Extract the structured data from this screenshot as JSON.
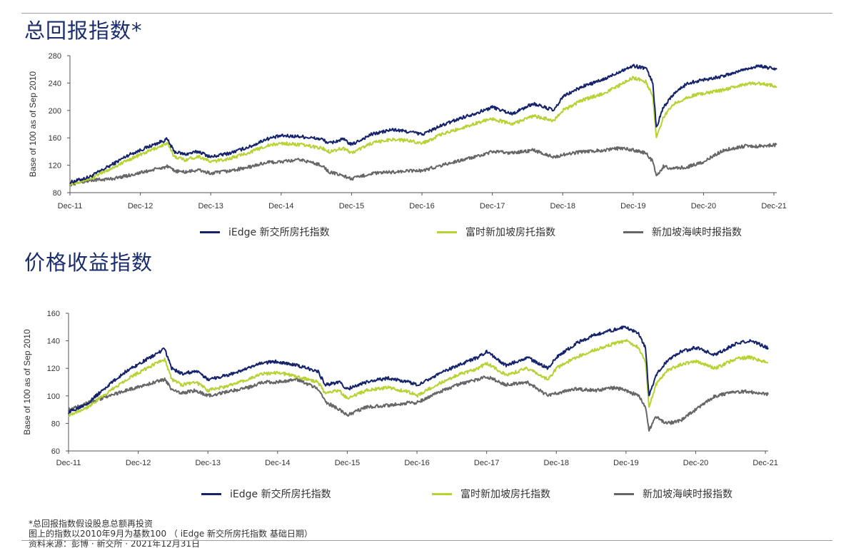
{
  "colors": {
    "navy": "#14236a",
    "lime": "#b6d233",
    "grey": "#666666"
  },
  "footnotes": [
    "*总回报指数假设股息总额再投资",
    "图上的指数以2010年9月为基数100 （ iEdge 新交所房托指数 基础日期）",
    "资料来源：彭博 · 新交所 · 2021年12月31日"
  ],
  "chart_data": [
    {
      "type": "line",
      "title": "总回报指数*",
      "ylabel": "Base of 100 as of Sep 2010",
      "ylim": [
        80,
        280
      ],
      "yticks": [
        80,
        120,
        160,
        200,
        240,
        280
      ],
      "xlim": [
        2011.92,
        2021.96
      ],
      "x_tick_labels": [
        "Dec-11",
        "Dec-12",
        "Dec-13",
        "Dec-14",
        "Dec-15",
        "Dec-16",
        "Dec-17",
        "Dec-18",
        "Dec-19",
        "Dec-20",
        "Dec-21"
      ],
      "x_ticks": [
        2011.92,
        2012.92,
        2013.92,
        2014.92,
        2015.92,
        2016.92,
        2017.92,
        2018.92,
        2019.92,
        2020.92,
        2021.92
      ],
      "legend": "bottom",
      "series": [
        {
          "name": "iEdge 新交所房托指数",
          "color": "#14236a",
          "x": [
            2011.92,
            2012.2,
            2012.5,
            2012.75,
            2013.3,
            2013.4,
            2013.55,
            2013.75,
            2013.92,
            2014.2,
            2014.5,
            2014.7,
            2014.92,
            2015.2,
            2015.5,
            2015.6,
            2015.8,
            2015.92,
            2016.2,
            2016.5,
            2016.8,
            2016.92,
            2017.2,
            2017.5,
            2017.8,
            2017.92,
            2018.2,
            2018.5,
            2018.8,
            2018.92,
            2019.2,
            2019.5,
            2019.75,
            2019.92,
            2020.1,
            2020.2,
            2020.25,
            2020.35,
            2020.5,
            2020.7,
            2020.92,
            2021.2,
            2021.5,
            2021.7,
            2021.96
          ],
          "y": [
            95,
            103,
            120,
            135,
            158,
            140,
            136,
            140,
            132,
            138,
            148,
            158,
            163,
            162,
            158,
            152,
            158,
            150,
            165,
            172,
            168,
            165,
            178,
            190,
            200,
            205,
            195,
            210,
            200,
            220,
            235,
            245,
            258,
            265,
            262,
            240,
            175,
            205,
            225,
            240,
            245,
            250,
            260,
            265,
            260
          ]
        },
        {
          "name": "富时新加坡房托指数",
          "color": "#b6d233",
          "x": [
            2011.92,
            2012.2,
            2012.5,
            2012.75,
            2013.3,
            2013.4,
            2013.55,
            2013.75,
            2013.92,
            2014.2,
            2014.5,
            2014.7,
            2014.92,
            2015.2,
            2015.5,
            2015.6,
            2015.8,
            2015.92,
            2016.2,
            2016.5,
            2016.8,
            2016.92,
            2017.2,
            2017.5,
            2017.8,
            2017.92,
            2018.2,
            2018.5,
            2018.8,
            2018.92,
            2019.2,
            2019.5,
            2019.75,
            2019.92,
            2020.1,
            2020.2,
            2020.25,
            2020.35,
            2020.5,
            2020.7,
            2020.92,
            2021.2,
            2021.5,
            2021.7,
            2021.96
          ],
          "y": [
            93,
            100,
            115,
            128,
            152,
            133,
            128,
            133,
            125,
            130,
            140,
            148,
            152,
            150,
            145,
            140,
            145,
            138,
            152,
            158,
            155,
            152,
            165,
            175,
            185,
            188,
            180,
            192,
            185,
            200,
            215,
            225,
            238,
            248,
            242,
            220,
            160,
            190,
            210,
            220,
            225,
            230,
            238,
            240,
            235
          ]
        },
        {
          "name": "新加坡海峡时报指数",
          "color": "#666666",
          "x": [
            2011.92,
            2012.2,
            2012.5,
            2012.75,
            2013.3,
            2013.4,
            2013.55,
            2013.75,
            2013.92,
            2014.2,
            2014.5,
            2014.7,
            2014.92,
            2015.2,
            2015.5,
            2015.6,
            2015.8,
            2015.92,
            2016.2,
            2016.5,
            2016.8,
            2016.92,
            2017.2,
            2017.5,
            2017.8,
            2017.92,
            2018.2,
            2018.5,
            2018.8,
            2018.92,
            2019.2,
            2019.5,
            2019.75,
            2019.92,
            2020.1,
            2020.2,
            2020.25,
            2020.35,
            2020.5,
            2020.7,
            2020.92,
            2021.2,
            2021.5,
            2021.7,
            2021.96
          ],
          "y": [
            92,
            98,
            100,
            105,
            118,
            112,
            110,
            113,
            108,
            112,
            118,
            124,
            125,
            128,
            120,
            110,
            105,
            100,
            108,
            110,
            112,
            112,
            120,
            128,
            135,
            140,
            138,
            142,
            132,
            135,
            140,
            142,
            145,
            142,
            138,
            125,
            105,
            118,
            115,
            118,
            125,
            142,
            148,
            148,
            150
          ]
        }
      ]
    },
    {
      "type": "line",
      "title": "价格收益指数",
      "ylabel": "Base of 100 as of Sep 2010",
      "ylim": [
        60,
        160
      ],
      "yticks": [
        60,
        80,
        100,
        120,
        140,
        160
      ],
      "xlim": [
        2011.92,
        2021.96
      ],
      "x_tick_labels": [
        "Dec-11",
        "Dec-12",
        "Dec-13",
        "Dec-14",
        "Dec-15",
        "Dec-16",
        "Dec-17",
        "Dec-18",
        "Dec-19",
        "Dec-20",
        "Dec-21"
      ],
      "x_ticks": [
        2011.92,
        2012.92,
        2013.92,
        2014.92,
        2015.92,
        2016.92,
        2017.92,
        2018.92,
        2019.92,
        2020.92,
        2021.92
      ],
      "legend": "bottom",
      "series": [
        {
          "name": "iEdge 新交所房托指数",
          "color": "#14236a",
          "x": [
            2011.92,
            2012.2,
            2012.5,
            2012.75,
            2013.3,
            2013.4,
            2013.55,
            2013.75,
            2013.92,
            2014.2,
            2014.5,
            2014.7,
            2014.92,
            2015.2,
            2015.5,
            2015.6,
            2015.8,
            2015.92,
            2016.2,
            2016.5,
            2016.8,
            2016.92,
            2017.2,
            2017.5,
            2017.8,
            2017.92,
            2018.2,
            2018.5,
            2018.8,
            2018.92,
            2019.2,
            2019.5,
            2019.75,
            2019.92,
            2020.1,
            2020.2,
            2020.25,
            2020.35,
            2020.5,
            2020.7,
            2020.92,
            2021.2,
            2021.5,
            2021.7,
            2021.96
          ],
          "y": [
            88,
            95,
            108,
            118,
            134,
            120,
            116,
            118,
            112,
            115,
            120,
            124,
            125,
            122,
            118,
            108,
            110,
            105,
            110,
            113,
            110,
            108,
            115,
            122,
            128,
            132,
            122,
            128,
            120,
            128,
            138,
            145,
            148,
            150,
            145,
            135,
            100,
            115,
            125,
            132,
            135,
            130,
            138,
            140,
            135
          ]
        },
        {
          "name": "富时新加坡房托指数",
          "color": "#b6d233",
          "x": [
            2011.92,
            2012.2,
            2012.5,
            2012.75,
            2013.3,
            2013.4,
            2013.55,
            2013.75,
            2013.92,
            2014.2,
            2014.5,
            2014.7,
            2014.92,
            2015.2,
            2015.5,
            2015.6,
            2015.8,
            2015.92,
            2016.2,
            2016.5,
            2016.8,
            2016.92,
            2017.2,
            2017.5,
            2017.8,
            2017.92,
            2018.2,
            2018.5,
            2018.8,
            2018.92,
            2019.2,
            2019.5,
            2019.75,
            2019.92,
            2020.1,
            2020.2,
            2020.25,
            2020.35,
            2020.5,
            2020.7,
            2020.92,
            2021.2,
            2021.5,
            2021.7,
            2021.96
          ],
          "y": [
            86,
            92,
            103,
            112,
            127,
            112,
            108,
            110,
            104,
            107,
            112,
            116,
            117,
            114,
            110,
            102,
            104,
            98,
            104,
            106,
            103,
            100,
            108,
            115,
            120,
            124,
            115,
            120,
            112,
            120,
            128,
            134,
            138,
            140,
            135,
            125,
            92,
            108,
            118,
            123,
            125,
            120,
            127,
            128,
            124
          ]
        },
        {
          "name": "新加坡海峡时报指数",
          "color": "#666666",
          "x": [
            2011.92,
            2012.2,
            2012.5,
            2012.75,
            2013.3,
            2013.4,
            2013.55,
            2013.75,
            2013.92,
            2014.2,
            2014.5,
            2014.7,
            2014.92,
            2015.2,
            2015.5,
            2015.6,
            2015.8,
            2015.92,
            2016.2,
            2016.5,
            2016.8,
            2016.92,
            2017.2,
            2017.5,
            2017.8,
            2017.92,
            2018.2,
            2018.5,
            2018.8,
            2018.92,
            2019.2,
            2019.5,
            2019.75,
            2019.92,
            2020.1,
            2020.2,
            2020.25,
            2020.35,
            2020.5,
            2020.7,
            2020.92,
            2021.2,
            2021.5,
            2021.7,
            2021.96
          ],
          "y": [
            90,
            95,
            100,
            104,
            112,
            105,
            102,
            104,
            100,
            103,
            106,
            110,
            110,
            112,
            105,
            96,
            90,
            86,
            92,
            93,
            95,
            95,
            102,
            108,
            112,
            114,
            108,
            110,
            100,
            102,
            105,
            104,
            106,
            104,
            100,
            92,
            75,
            85,
            80,
            82,
            90,
            100,
            103,
            103,
            101
          ]
        }
      ]
    }
  ]
}
